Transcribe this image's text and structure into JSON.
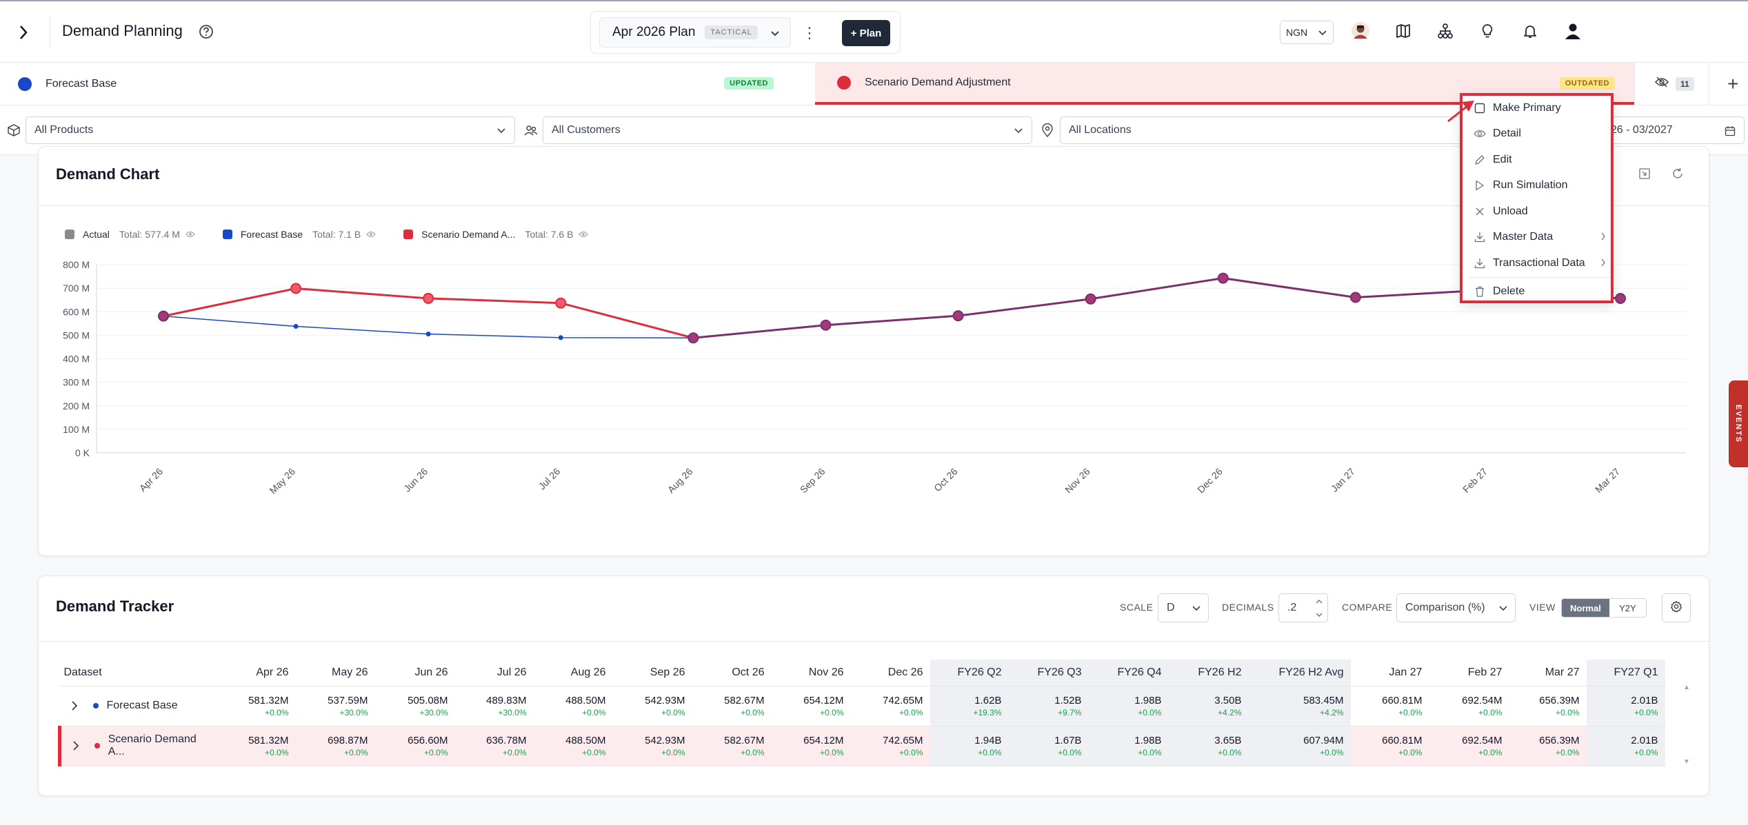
{
  "header": {
    "title": "Demand Planning",
    "plan_name": "Apr 2026 Plan",
    "plan_badge": "TACTICAL",
    "plan_button": "+ Plan",
    "currency": "NGN",
    "icons": [
      "avatar",
      "map-icon",
      "hierarchy-icon",
      "lightbulb-icon",
      "bell-icon",
      "user-icon"
    ]
  },
  "tabs": [
    {
      "label": "Forecast Base",
      "status": "UPDATED",
      "color": "#1a47c4"
    },
    {
      "label": "Scenario Demand Adjustment",
      "status": "OUTDATED",
      "color": "#dc2d3c"
    }
  ],
  "hidden_count": "11",
  "filters": {
    "products": "All Products",
    "customers": "All Customers",
    "locations": "All Locations",
    "date_range": "026 - 03/2027"
  },
  "menu": {
    "items": [
      "Make Primary",
      "Detail",
      "Edit",
      "Run Simulation",
      "Unload",
      "Master Data",
      "Transactional Data",
      "Delete"
    ]
  },
  "events_label": "EVENTS",
  "demand_chart": {
    "title": "Demand Chart",
    "legend": [
      {
        "name": "Actual",
        "total": "Total: 577.4 M",
        "color": "#8a8a8a"
      },
      {
        "name": "Forecast Base",
        "total": "Total: 7.1 B",
        "color": "#1a47c4"
      },
      {
        "name": "Scenario Demand A...",
        "total": "Total: 7.6 B",
        "color": "#dc2d3c"
      }
    ]
  },
  "chart_data": {
    "type": "line",
    "categories": [
      "Apr 26",
      "May 26",
      "Jun 26",
      "Jul 26",
      "Aug 26",
      "Sep 26",
      "Oct 26",
      "Nov 26",
      "Dec 26",
      "Jan 27",
      "Feb 27",
      "Mar 27"
    ],
    "y_ticks": [
      "0 K",
      "100 M",
      "200 M",
      "300 M",
      "400 M",
      "500 M",
      "600 M",
      "700 M",
      "800 M"
    ],
    "ylim": [
      0,
      800
    ],
    "grid": true,
    "legend_position": "top-left",
    "series": [
      {
        "name": "Forecast Base",
        "color": "#1a47c4",
        "values": [
          581.32,
          537.59,
          505.08,
          489.83,
          488.5,
          542.93,
          582.67,
          654.12,
          742.65,
          660.81,
          692.54,
          656.39
        ]
      },
      {
        "name": "Scenario Demand Adjustment",
        "color": "#dc2d3c",
        "values": [
          581.32,
          698.87,
          656.6,
          636.78,
          488.5,
          542.93,
          582.67,
          654.12,
          742.65,
          660.81,
          692.54,
          656.39
        ]
      }
    ]
  },
  "tracker": {
    "title": "Demand Tracker",
    "scale_label": "SCALE",
    "scale_value": "D",
    "decimals_label": "DECIMALS",
    "decimals_value": ".2",
    "compare_label": "COMPARE",
    "compare_value": "Comparison (%)",
    "view_label": "VIEW",
    "view_on": "Normal",
    "view_off": "Y2Y",
    "columns": [
      "Dataset",
      "Apr 26",
      "May 26",
      "Jun 26",
      "Jul 26",
      "Aug 26",
      "Sep 26",
      "Oct 26",
      "Nov 26",
      "Dec 26",
      "FY26 Q2",
      "FY26 Q3",
      "FY26 Q4",
      "FY26 H2",
      "FY26 H2 Avg",
      "Jan 27",
      "Feb 27",
      "Mar 27",
      "FY27 Q1"
    ],
    "rows": [
      {
        "name": "Forecast Base",
        "color": "#1a47c4",
        "values": [
          "581.32M",
          "537.59M",
          "505.08M",
          "489.83M",
          "488.50M",
          "542.93M",
          "582.67M",
          "654.12M",
          "742.65M",
          "1.62B",
          "1.52B",
          "1.98B",
          "3.50B",
          "583.45M",
          "660.81M",
          "692.54M",
          "656.39M",
          "2.01B"
        ],
        "pcts": [
          "+0.0%",
          "+30.0%",
          "+30.0%",
          "+30.0%",
          "+0.0%",
          "+0.0%",
          "+0.0%",
          "+0.0%",
          "+0.0%",
          "+19.3%",
          "+9.7%",
          "+0.0%",
          "+4.2%",
          "+4.2%",
          "+0.0%",
          "+0.0%",
          "+0.0%",
          "+0.0%"
        ]
      },
      {
        "name": "Scenario Demand A...",
        "color": "#dc2d3c",
        "values": [
          "581.32M",
          "698.87M",
          "656.60M",
          "636.78M",
          "488.50M",
          "542.93M",
          "582.67M",
          "654.12M",
          "742.65M",
          "1.94B",
          "1.67B",
          "1.98B",
          "3.65B",
          "607.94M",
          "660.81M",
          "692.54M",
          "656.39M",
          "2.01B"
        ],
        "pcts": [
          "+0.0%",
          "+0.0%",
          "+0.0%",
          "+0.0%",
          "+0.0%",
          "+0.0%",
          "+0.0%",
          "+0.0%",
          "+0.0%",
          "+0.0%",
          "+0.0%",
          "+0.0%",
          "+0.0%",
          "+0.0%",
          "+0.0%",
          "+0.0%",
          "+0.0%",
          "+0.0%"
        ]
      }
    ]
  }
}
